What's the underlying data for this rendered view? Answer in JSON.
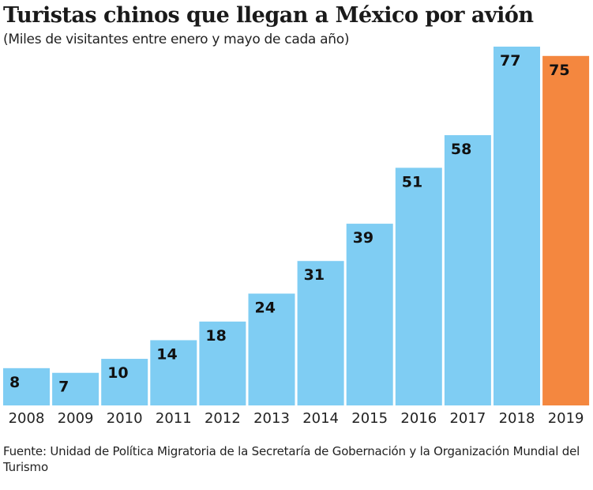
{
  "chart_data": {
    "type": "bar",
    "title": "Turistas chinos que llegan a México por avión",
    "subtitle": "(Miles de visitantes entre enero y mayo de cada año)",
    "categories": [
      "2008",
      "2009",
      "2010",
      "2011",
      "2012",
      "2013",
      "2014",
      "2015",
      "2016",
      "2017",
      "2018",
      "2019"
    ],
    "values": [
      8,
      7,
      10,
      14,
      18,
      24,
      31,
      39,
      51,
      58,
      77,
      75
    ],
    "data_labels": [
      "8",
      "7",
      "10",
      "14",
      "18",
      "24",
      "31",
      "39",
      "51",
      "58",
      "77",
      "75"
    ],
    "xlabel": "",
    "ylabel": "",
    "ylim": [
      0,
      77
    ],
    "grid": false,
    "colors": {
      "default": "#7fcdf3",
      "highlight": "#f4873f",
      "highlight_category": "2019"
    },
    "source": "Fuente: Unidad de Política Migratoria de la Secretaría de Gobernación y la Organización Mundial del Turismo"
  }
}
